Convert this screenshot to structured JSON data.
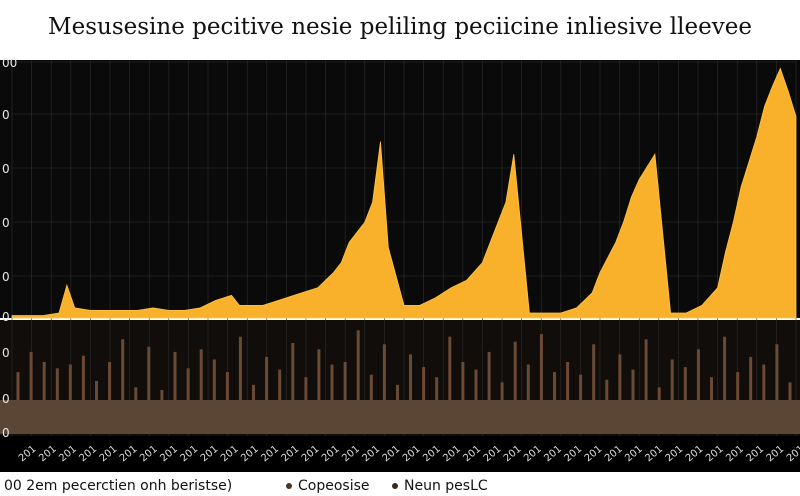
{
  "title": "Mesusesine pecitive nesie peliling peciicine inliesive lleevee",
  "colors": {
    "background": "#000000",
    "top_panel_bg": "#0a0a0a",
    "bottom_panel_bg": "#100d0a",
    "area": "#f9b12c",
    "bar": "#6b4a35",
    "baseline_band": "#5b4636",
    "grid": "#2f2f2f"
  },
  "chart_data": [
    {
      "type": "area",
      "panel": "top",
      "grid": true,
      "y_tick_labels": [
        "00",
        "0",
        "0",
        "0",
        "0",
        "0"
      ],
      "x": [
        0,
        2,
        4,
        6,
        7,
        8,
        10,
        12,
        14,
        16,
        18,
        20,
        22,
        24,
        26,
        28,
        29,
        30,
        32,
        34,
        36,
        38,
        39,
        40,
        41,
        42,
        43,
        44,
        45,
        46,
        47,
        48,
        50,
        52,
        54,
        56,
        58,
        60,
        61,
        62,
        63,
        64,
        66,
        68,
        70,
        72,
        74,
        75,
        76,
        77,
        78,
        79,
        80,
        82,
        84,
        86,
        88,
        90,
        91,
        92,
        93,
        94,
        95,
        96,
        97,
        98,
        99,
        100
      ],
      "values": [
        1,
        1,
        1,
        2,
        13,
        4,
        3,
        3,
        3,
        3,
        4,
        3,
        3,
        4,
        7,
        9,
        5,
        5,
        5,
        7,
        9,
        11,
        12,
        15,
        18,
        22,
        30,
        34,
        38,
        46,
        70,
        28,
        5,
        5,
        8,
        12,
        15,
        22,
        30,
        38,
        46,
        65,
        2,
        2,
        2,
        4,
        10,
        18,
        24,
        30,
        38,
        48,
        55,
        65,
        2,
        2,
        5,
        12,
        26,
        38,
        52,
        62,
        72,
        84,
        92,
        99,
        90,
        80
      ],
      "ylim": [
        0,
        100
      ]
    },
    {
      "type": "bar",
      "panel": "bottom",
      "grid": true,
      "y_tick_labels": [
        "0",
        "0",
        "0"
      ],
      "x_tick_labels": [
        "201",
        "201",
        "201",
        "201",
        "201",
        "201",
        "201",
        "201",
        "201",
        "201",
        "201",
        "201",
        "201",
        "201",
        "201",
        "201",
        "201",
        "201",
        "201",
        "201",
        "201",
        "201",
        "201",
        "201",
        "201",
        "201",
        "201",
        "201",
        "201",
        "201",
        "201",
        "201",
        "201",
        "201",
        "201",
        "201",
        "201",
        "201",
        "201"
      ],
      "values": [
        22,
        38,
        30,
        25,
        28,
        35,
        15,
        30,
        48,
        10,
        42,
        8,
        38,
        25,
        40,
        32,
        22,
        50,
        12,
        34,
        24,
        45,
        18,
        40,
        28,
        30,
        55,
        20,
        44,
        12,
        36,
        26,
        18,
        50,
        30,
        24,
        38,
        14,
        46,
        28,
        52,
        22,
        30,
        20,
        44,
        16,
        36,
        24,
        48,
        10,
        32,
        26,
        40,
        18,
        50,
        22,
        34,
        28,
        44,
        14
      ],
      "ylim": [
        0,
        60
      ]
    }
  ],
  "legend": {
    "note": "00 2em pecerctien onh beristse)",
    "items": [
      {
        "label": "Copeosise",
        "color": "#4a3526"
      },
      {
        "label": "Neun pesLC",
        "color": "#3a2a1c"
      }
    ]
  }
}
